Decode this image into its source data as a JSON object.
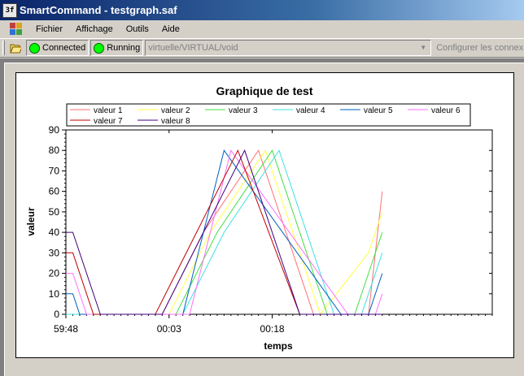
{
  "window": {
    "title": "SmartCommand - testgraph.saf",
    "icon_text": "3f"
  },
  "menu": {
    "items": [
      {
        "label": "Fichier"
      },
      {
        "label": "Affichage"
      },
      {
        "label": "Outils"
      },
      {
        "label": "Aide"
      }
    ]
  },
  "toolbar": {
    "connected_label": "Connected",
    "running_label": "Running",
    "connection_path": "virtuelle/VIRTUAL/void",
    "configure_label": "Configurer les connex",
    "led_color": "#00ff00"
  },
  "chart_data": {
    "type": "line",
    "title": "Graphique de test",
    "xlabel": "temps",
    "ylabel": "valeur",
    "ylim": [
      0,
      90
    ],
    "y_ticks": [
      0,
      10,
      20,
      30,
      40,
      50,
      60,
      70,
      80,
      90
    ],
    "xlim": [
      0,
      62
    ],
    "x_ticks": [
      {
        "value": 0,
        "label": "59:48"
      },
      {
        "value": 15,
        "label": "00:03"
      },
      {
        "value": 30,
        "label": "00:18"
      }
    ],
    "legend_position": "top",
    "series": [
      {
        "name": "valeur 1",
        "color": "#ff7070",
        "x": [
          0,
          4,
          12,
          14,
          20,
          28,
          36,
          44,
          46
        ],
        "y": [
          0,
          0,
          0,
          0,
          40,
          80,
          0,
          0,
          60
        ]
      },
      {
        "name": "valeur 2",
        "color": "#ffff40",
        "x": [
          0,
          5,
          14,
          15,
          21,
          29,
          37,
          44,
          46
        ],
        "y": [
          0,
          0,
          0,
          0,
          40,
          80,
          0,
          30,
          50
        ]
      },
      {
        "name": "valeur 3",
        "color": "#40e040",
        "x": [
          0,
          6,
          15,
          16,
          22,
          30,
          38,
          42,
          46
        ],
        "y": [
          0,
          0,
          0,
          0,
          40,
          80,
          0,
          0,
          40
        ]
      },
      {
        "name": "valeur 4",
        "color": "#40e0e0",
        "x": [
          0,
          7,
          16,
          17,
          23,
          31,
          39,
          43,
          46
        ],
        "y": [
          0,
          0,
          0,
          0,
          40,
          80,
          0,
          0,
          30
        ]
      },
      {
        "name": "valeur 5",
        "color": "#0060c0",
        "x": [
          0,
          1,
          2,
          9,
          17,
          23,
          40,
          44,
          46
        ],
        "y": [
          10,
          10,
          0,
          0,
          0,
          80,
          0,
          0,
          20
        ]
      },
      {
        "name": "valeur 6",
        "color": "#ff70ff",
        "x": [
          0,
          1,
          3,
          10,
          18,
          24,
          41,
          45,
          46
        ],
        "y": [
          20,
          20,
          0,
          0,
          0,
          80,
          0,
          0,
          10
        ]
      },
      {
        "name": "valeur 7",
        "color": "#c00000",
        "x": [
          0,
          1,
          4,
          13,
          19,
          25,
          34,
          41,
          46
        ],
        "y": [
          30,
          30,
          0,
          0,
          40,
          80,
          0,
          0,
          0
        ]
      },
      {
        "name": "valeur 8",
        "color": "#400080",
        "x": [
          0,
          1,
          5,
          14,
          20,
          26,
          34,
          41,
          46
        ],
        "y": [
          40,
          40,
          0,
          0,
          40,
          80,
          0,
          0,
          0
        ]
      }
    ]
  }
}
